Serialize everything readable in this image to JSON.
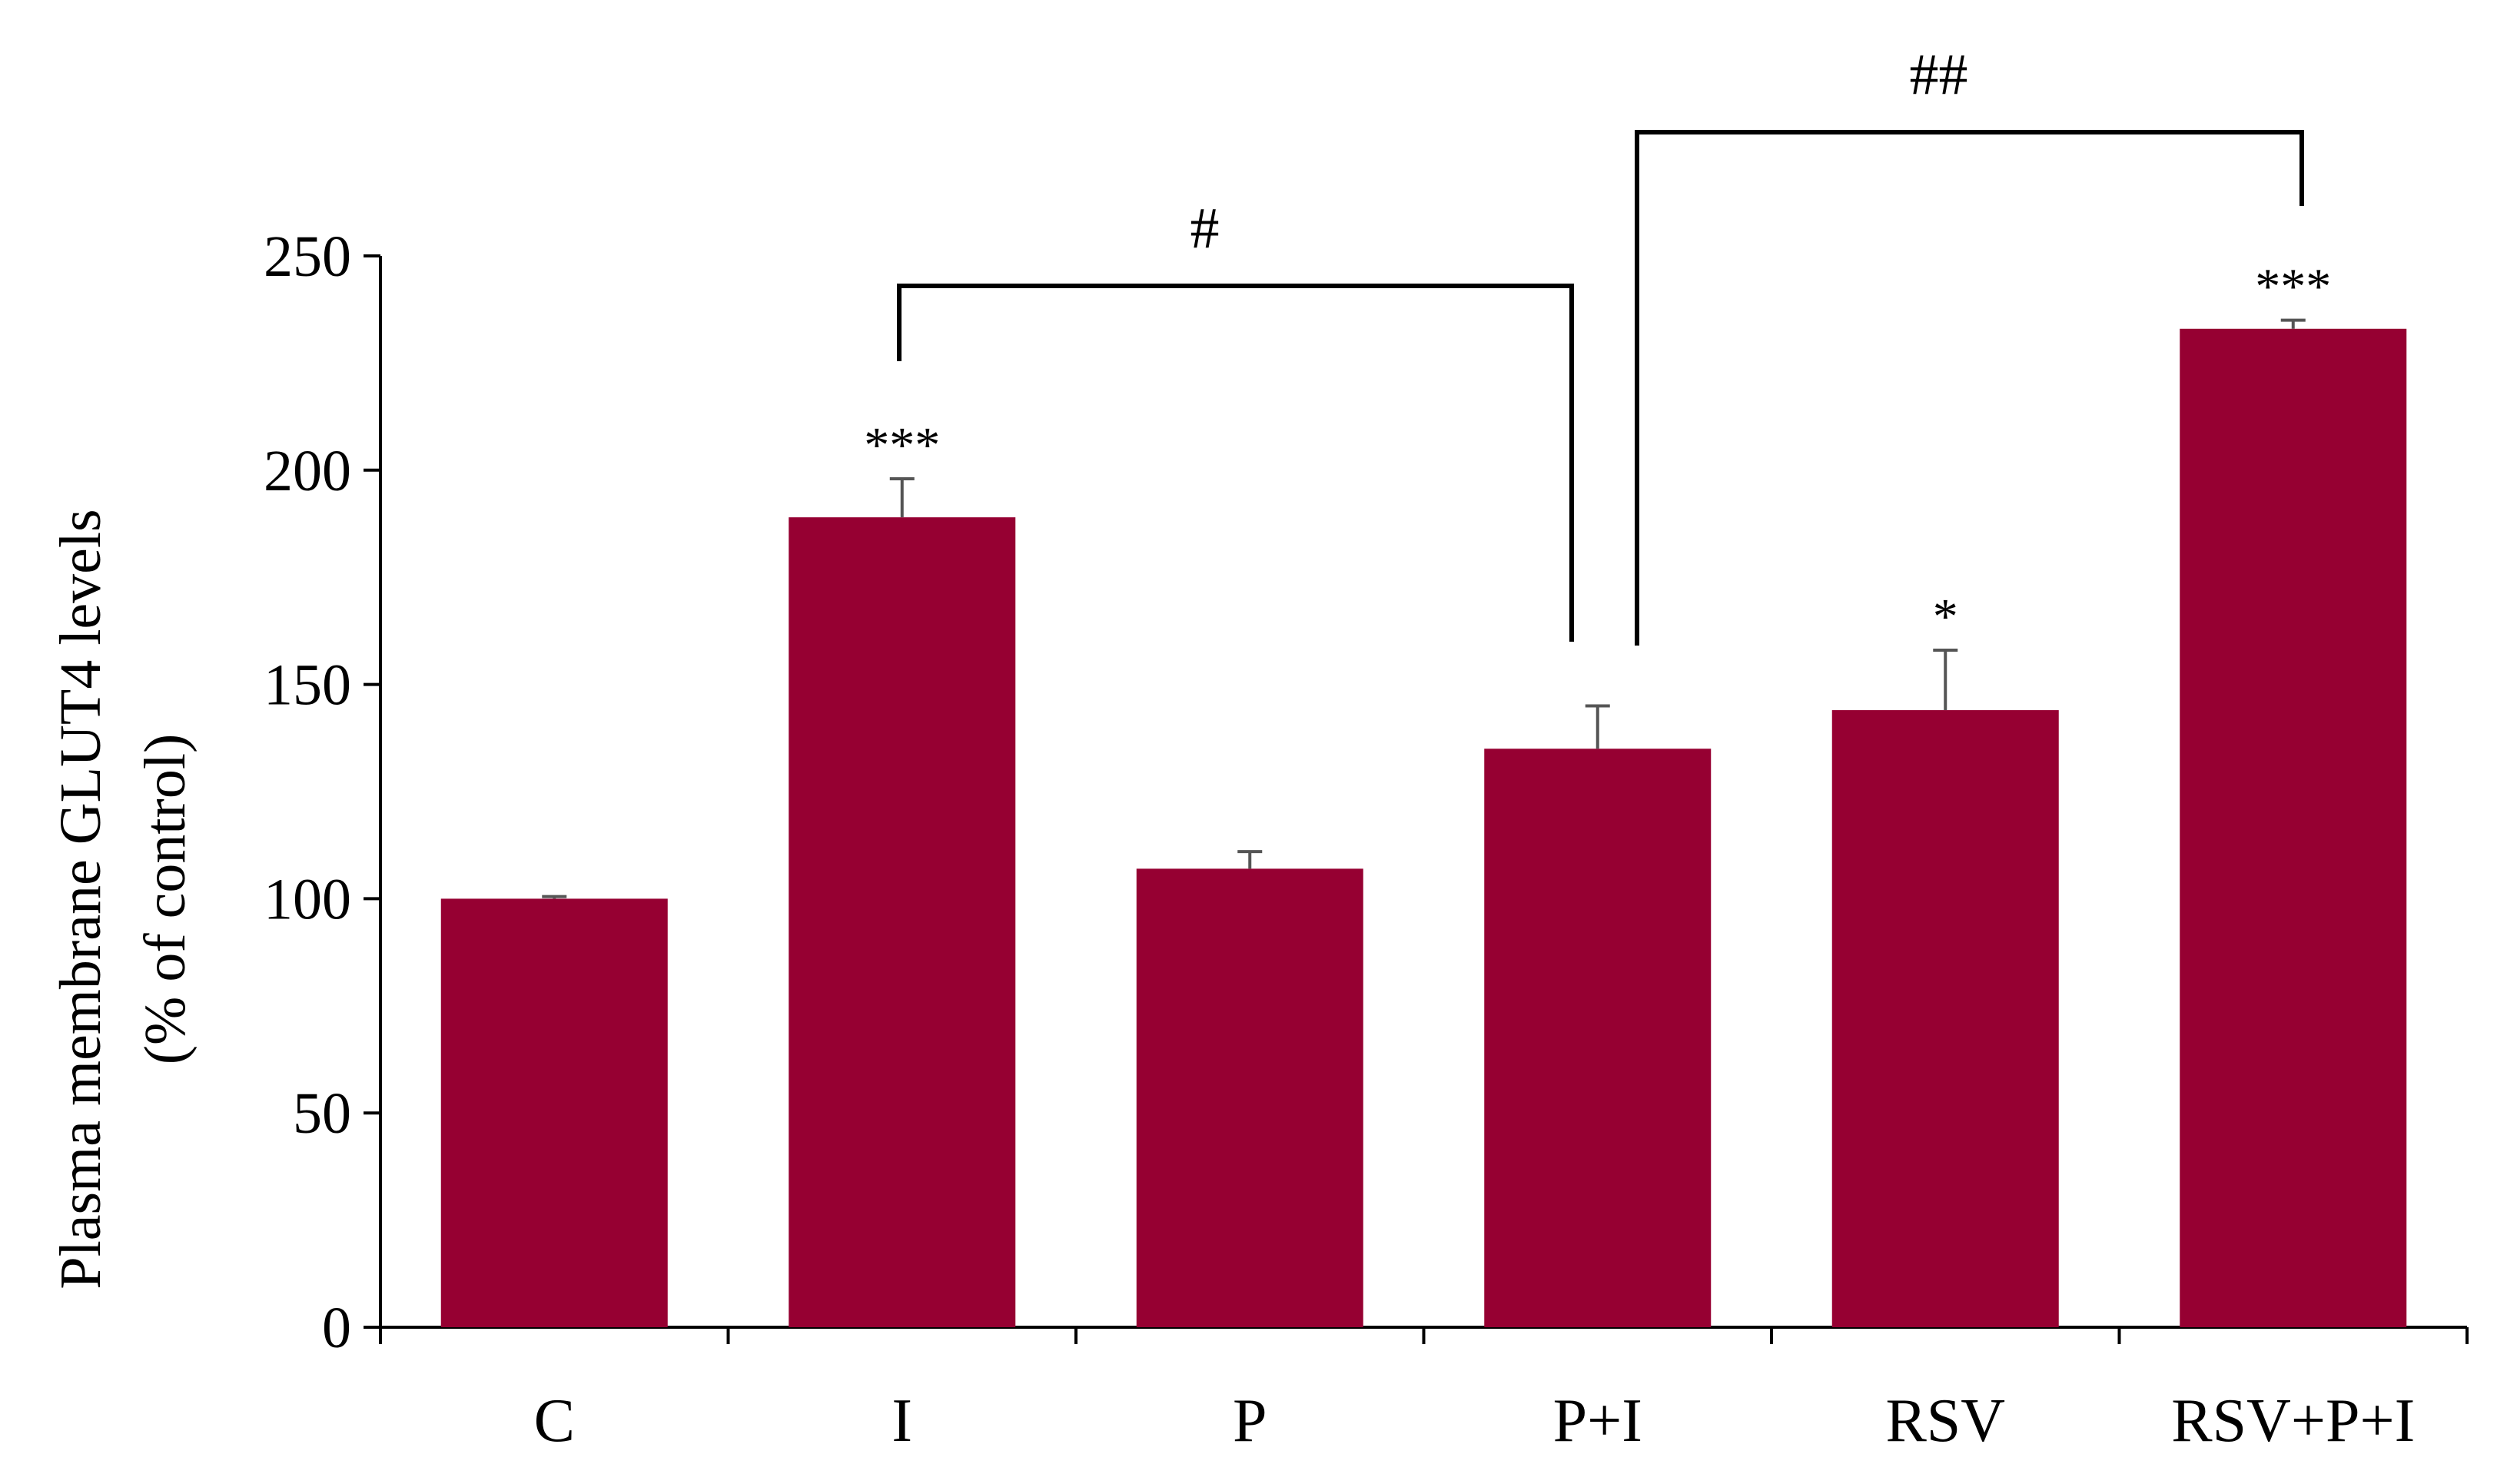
{
  "chart_data": {
    "type": "bar",
    "title": "",
    "xlabel": "",
    "ylabel": [
      "Plasma membrane GLUT4 levels",
      "(% of control)"
    ],
    "ylim": [
      0,
      250
    ],
    "yticks": [
      0,
      50,
      100,
      150,
      200,
      250
    ],
    "categories": [
      "C",
      "I",
      "P",
      "P+I",
      "RSV",
      "RSV+P+I"
    ],
    "values": [
      100,
      189,
      107,
      135,
      144,
      233
    ],
    "errors": [
      0.5,
      9,
      4,
      10,
      14,
      2
    ],
    "significance": [
      "",
      "***",
      "",
      "",
      "*",
      "***"
    ],
    "brackets": [
      {
        "from": 1,
        "to": 3,
        "label": "#"
      },
      {
        "from": 3,
        "to": 5,
        "label": "##"
      }
    ],
    "bar_color": "#960032",
    "grid": false,
    "legend": "none"
  }
}
